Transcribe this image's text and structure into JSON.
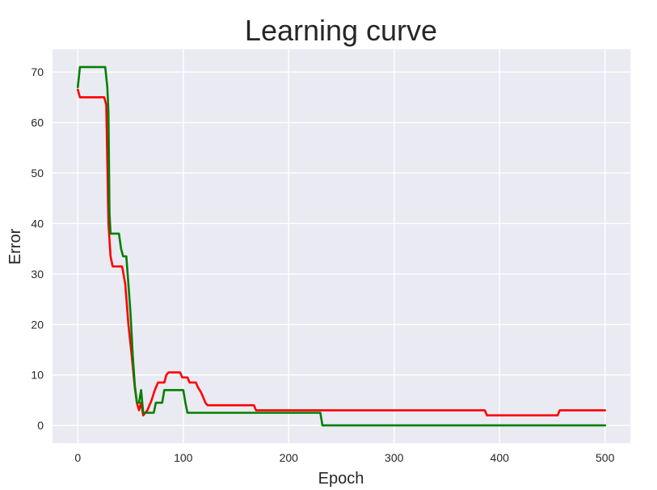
{
  "chart_data": {
    "type": "line",
    "title": "Learning curve",
    "xlabel": "Epoch",
    "ylabel": "Error",
    "xlim": [
      -24,
      524
    ],
    "ylim": [
      -3.5,
      74.5
    ],
    "xticks": [
      0,
      100,
      200,
      300,
      400,
      500
    ],
    "yticks": [
      0,
      10,
      20,
      30,
      40,
      50,
      60,
      70
    ],
    "grid": true,
    "background": "#eaeaf2",
    "series": [
      {
        "color": "#ff0000",
        "points": [
          [
            0,
            66.5
          ],
          [
            2,
            65
          ],
          [
            25,
            65
          ],
          [
            27,
            63.5
          ],
          [
            29,
            40
          ],
          [
            31,
            33.5
          ],
          [
            33,
            31.5
          ],
          [
            42,
            31.5
          ],
          [
            45,
            28
          ],
          [
            48,
            20
          ],
          [
            51,
            14
          ],
          [
            54,
            7.5
          ],
          [
            56,
            4.5
          ],
          [
            58,
            3
          ],
          [
            60,
            4.5
          ],
          [
            62,
            2
          ],
          [
            66,
            3
          ],
          [
            70,
            5
          ],
          [
            73,
            7
          ],
          [
            76,
            8.5
          ],
          [
            82,
            8.5
          ],
          [
            84,
            10
          ],
          [
            86,
            10.5
          ],
          [
            97,
            10.5
          ],
          [
            99,
            9.5
          ],
          [
            104,
            9.5
          ],
          [
            106,
            8.5
          ],
          [
            112,
            8.5
          ],
          [
            114,
            7.5
          ],
          [
            117,
            6.5
          ],
          [
            119,
            5.5
          ],
          [
            121,
            4.5
          ],
          [
            123,
            4
          ],
          [
            167,
            4
          ],
          [
            169,
            3
          ],
          [
            386,
            3
          ],
          [
            388,
            2
          ],
          [
            455,
            2
          ],
          [
            457,
            3
          ],
          [
            500,
            3
          ]
        ]
      },
      {
        "color": "#008000",
        "points": [
          [
            0,
            67
          ],
          [
            2,
            71
          ],
          [
            26,
            71
          ],
          [
            28,
            67
          ],
          [
            29,
            62
          ],
          [
            30,
            42
          ],
          [
            31,
            38
          ],
          [
            39,
            38
          ],
          [
            41,
            35
          ],
          [
            43,
            33.5
          ],
          [
            46,
            33.5
          ],
          [
            48,
            28
          ],
          [
            50,
            22
          ],
          [
            52,
            14
          ],
          [
            54,
            8
          ],
          [
            56,
            4.5
          ],
          [
            58,
            4.5
          ],
          [
            60,
            7
          ],
          [
            62,
            2.5
          ],
          [
            64,
            2.5
          ],
          [
            72,
            2.5
          ],
          [
            74,
            4.5
          ],
          [
            80,
            4.5
          ],
          [
            82,
            7
          ],
          [
            100,
            7
          ],
          [
            102,
            4.5
          ],
          [
            104,
            2.5
          ],
          [
            230,
            2.5
          ],
          [
            232,
            0
          ],
          [
            500,
            0
          ]
        ]
      }
    ]
  }
}
